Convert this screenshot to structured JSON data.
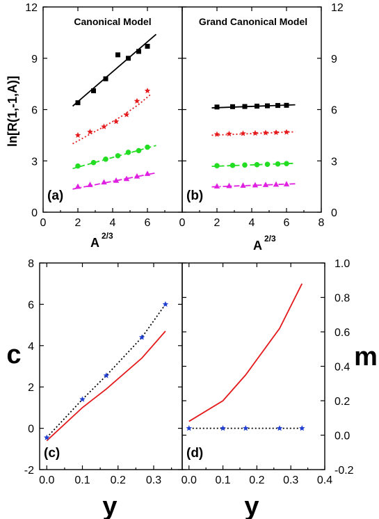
{
  "figure": {
    "ylabel_top": "ln[R(1,-1,A)]",
    "xlabel_top": "A",
    "xlabel_top_sup": "2/3",
    "ylabel_c": "c",
    "ylabel_m": "m",
    "xlabel_bottom": "y"
  },
  "chart_data": [
    {
      "id": "a",
      "type": "scatter",
      "panel_label": "(a)",
      "title": "Canonical Model",
      "xlabel": "A^2/3",
      "ylabel": "ln[R(1,-1,A)]",
      "xlim": [
        0,
        8
      ],
      "ylim": [
        0,
        12
      ],
      "xticks": [
        0,
        2,
        4,
        6
      ],
      "yticks": [
        0,
        3,
        6,
        9,
        12
      ],
      "series": [
        {
          "marker": "square",
          "color": "#000000",
          "line_style": "solid",
          "x": [
            2.0,
            2.9,
            3.6,
            4.3,
            4.9,
            5.5,
            6.0
          ],
          "y": [
            6.4,
            7.1,
            7.8,
            9.2,
            9.0,
            9.4,
            9.7
          ],
          "fit": {
            "x": [
              1.7,
              6.5
            ],
            "y": [
              6.2,
              10.4
            ]
          }
        },
        {
          "marker": "star",
          "color": "#e41a1c",
          "line_style": "dotted",
          "x": [
            2.0,
            2.7,
            3.5,
            4.2,
            4.8,
            5.4,
            6.0
          ],
          "y": [
            4.5,
            4.7,
            5.0,
            5.3,
            5.7,
            6.5,
            7.1
          ],
          "fit": {
            "x": [
              1.7,
              2.5,
              3.5,
              4.5,
              5.5,
              6.2
            ],
            "y": [
              4.0,
              4.45,
              5.0,
              5.6,
              6.3,
              6.9
            ]
          }
        },
        {
          "marker": "circle",
          "color": "#22dd22",
          "line_style": "dashed",
          "x": [
            2.0,
            2.9,
            3.6,
            4.3,
            4.9,
            5.5,
            6.0
          ],
          "y": [
            2.7,
            2.9,
            3.1,
            3.3,
            3.5,
            3.6,
            3.8
          ],
          "fit": {
            "x": [
              1.7,
              6.5
            ],
            "y": [
              2.55,
              3.9
            ]
          }
        },
        {
          "marker": "triangle",
          "color": "#e020e0",
          "line_style": "dashdot",
          "x": [
            2.0,
            2.7,
            3.5,
            4.2,
            4.8,
            5.4,
            6.0
          ],
          "y": [
            1.5,
            1.6,
            1.75,
            1.85,
            1.95,
            2.1,
            2.25
          ],
          "fit": {
            "x": [
              1.7,
              6.5
            ],
            "y": [
              1.35,
              2.3
            ]
          }
        }
      ]
    },
    {
      "id": "b",
      "type": "scatter",
      "panel_label": "(b)",
      "title": "Grand Canonical Model",
      "xlabel": "A^2/3",
      "xlim": [
        0,
        8
      ],
      "ylim": [
        0,
        12
      ],
      "xticks": [
        0,
        2,
        4,
        6,
        8
      ],
      "yticks": [
        0,
        3,
        6,
        9,
        12
      ],
      "series": [
        {
          "marker": "square",
          "color": "#000000",
          "line_style": "solid",
          "x": [
            2.0,
            2.9,
            3.6,
            4.3,
            4.9,
            5.5,
            6.0
          ],
          "y": [
            6.15,
            6.17,
            6.18,
            6.2,
            6.22,
            6.24,
            6.25
          ],
          "fit": {
            "x": [
              1.7,
              6.5
            ],
            "y": [
              6.1,
              6.28
            ]
          }
        },
        {
          "marker": "star",
          "color": "#e41a1c",
          "line_style": "dotted",
          "x": [
            2.0,
            2.7,
            3.5,
            4.2,
            4.8,
            5.4,
            6.0
          ],
          "y": [
            4.55,
            4.58,
            4.6,
            4.62,
            4.64,
            4.66,
            4.68
          ],
          "fit": {
            "x": [
              1.7,
              6.5
            ],
            "y": [
              4.5,
              4.7
            ]
          }
        },
        {
          "marker": "circle",
          "color": "#22dd22",
          "line_style": "dashed",
          "x": [
            2.0,
            2.9,
            3.6,
            4.3,
            4.9,
            5.5,
            6.0
          ],
          "y": [
            2.72,
            2.74,
            2.76,
            2.78,
            2.8,
            2.82,
            2.84
          ],
          "fit": {
            "x": [
              1.7,
              6.5
            ],
            "y": [
              2.68,
              2.86
            ]
          }
        },
        {
          "marker": "triangle",
          "color": "#e020e0",
          "line_style": "dashdot",
          "x": [
            2.0,
            2.7,
            3.5,
            4.2,
            4.8,
            5.4,
            6.0
          ],
          "y": [
            1.52,
            1.54,
            1.56,
            1.58,
            1.6,
            1.62,
            1.64
          ],
          "fit": {
            "x": [
              1.7,
              6.5
            ],
            "y": [
              1.48,
              1.66
            ]
          }
        }
      ]
    },
    {
      "id": "c",
      "type": "line",
      "panel_label": "(c)",
      "xlabel": "y",
      "ylabel": "c",
      "xlim": [
        -0.02,
        0.38
      ],
      "ylim": [
        -2,
        8
      ],
      "xticks": [
        0.0,
        0.1,
        0.2,
        0.3
      ],
      "xtick_labels": [
        "0.0",
        "0.1",
        "0.2",
        "0.3"
      ],
      "yticks": [
        -2,
        0,
        2,
        4,
        6,
        8
      ],
      "series": [
        {
          "color": "#e41a1c",
          "line_style": "solid",
          "marker": "none",
          "x": [
            0.0,
            0.1,
            0.167,
            0.267,
            0.333
          ],
          "y": [
            -0.6,
            1.0,
            1.9,
            3.4,
            4.7
          ]
        },
        {
          "color": "#000000",
          "line_style": "dotted",
          "marker": "star",
          "marker_color": "#1f3fd0",
          "x": [
            0.0,
            0.1,
            0.167,
            0.267,
            0.333
          ],
          "y": [
            -0.45,
            1.4,
            2.55,
            4.4,
            6.0
          ]
        }
      ]
    },
    {
      "id": "d",
      "type": "line",
      "panel_label": "(d)",
      "xlabel": "y",
      "ylabel": "m",
      "xlim": [
        -0.02,
        0.4
      ],
      "ylim": [
        -0.2,
        1.0
      ],
      "xticks": [
        0.0,
        0.1,
        0.2,
        0.3,
        0.4
      ],
      "xtick_labels": [
        "0.0",
        "0.1",
        "0.2",
        "0.3",
        "0.4"
      ],
      "yticks": [
        -0.2,
        0.0,
        0.2,
        0.4,
        0.6,
        0.8,
        1.0
      ],
      "ytick_labels": [
        "-0.2",
        "0.0",
        "0.2",
        "0.4",
        "0.6",
        "0.8",
        "1.0"
      ],
      "series": [
        {
          "color": "#e41a1c",
          "line_style": "solid",
          "marker": "none",
          "x": [
            0.0,
            0.1,
            0.167,
            0.267,
            0.333
          ],
          "y": [
            0.08,
            0.2,
            0.35,
            0.62,
            0.88
          ]
        },
        {
          "color": "#000000",
          "line_style": "dotted",
          "marker": "star",
          "marker_color": "#1f3fd0",
          "x": [
            0.0,
            0.1,
            0.167,
            0.267,
            0.333
          ],
          "y": [
            0.04,
            0.04,
            0.04,
            0.04,
            0.04
          ]
        }
      ]
    }
  ]
}
